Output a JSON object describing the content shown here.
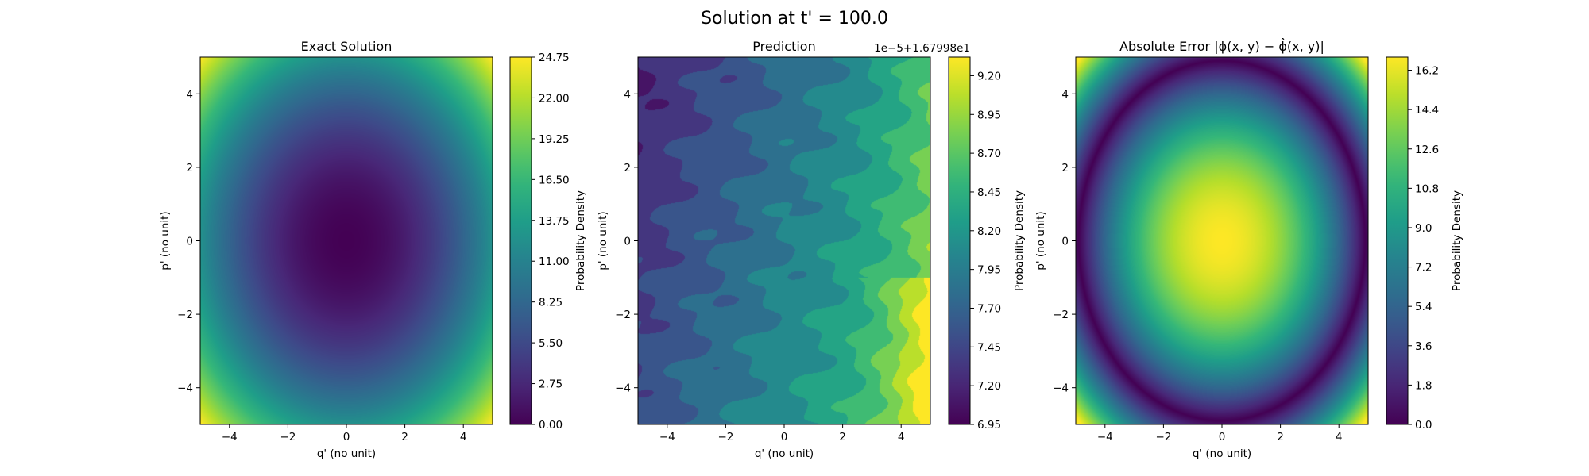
{
  "figure": {
    "title": "Solution at t' = 100.0"
  },
  "chart_data": [
    {
      "type": "heatmap",
      "title": "Exact Solution",
      "xlabel": "q' (no unit)",
      "ylabel": "p' (no unit)",
      "xlim": [
        -5,
        5
      ],
      "ylim": [
        -5,
        5
      ],
      "x_ticks": [
        -4,
        -2,
        0,
        2,
        4
      ],
      "y_ticks": [
        -4,
        -2,
        0,
        2,
        4
      ],
      "field": "radial-bowl",
      "colormap": "viridis",
      "colorbar": {
        "label": "Probability Density",
        "range": [
          0.0,
          24.75
        ],
        "ticks": [
          0.0,
          2.75,
          5.5,
          8.25,
          11.0,
          13.75,
          16.5,
          19.25,
          22.0,
          24.75
        ],
        "tick_labels": [
          "0.00",
          "2.75",
          "5.50",
          "8.25",
          "11.00",
          "13.75",
          "16.50",
          "19.25",
          "22.00",
          "24.75"
        ]
      }
    },
    {
      "type": "heatmap",
      "title": "Prediction",
      "xlabel": "q' (no unit)",
      "ylabel": "p' (no unit)",
      "xlim": [
        -5,
        5
      ],
      "ylim": [
        -5,
        5
      ],
      "x_ticks": [
        -4,
        -2,
        0,
        2,
        4
      ],
      "y_ticks": [
        -4,
        -2,
        0,
        2,
        4
      ],
      "field": "diagonal-gradient",
      "colormap": "viridis",
      "colorbar": {
        "label": "Probability Density",
        "offset_text": "1e−5+1.67998e1",
        "range": [
          6.95,
          9.32
        ],
        "ticks": [
          6.95,
          7.2,
          7.45,
          7.7,
          7.95,
          8.2,
          8.45,
          8.7,
          8.95,
          9.2
        ],
        "tick_labels": [
          "6.95",
          "7.20",
          "7.45",
          "7.70",
          "7.95",
          "8.20",
          "8.45",
          "8.70",
          "8.95",
          "9.20"
        ]
      }
    },
    {
      "type": "heatmap",
      "title": "Absolute Error |ϕ(x, y) − ϕ̂(x, y)|",
      "xlabel": "q' (no unit)",
      "ylabel": "p' (no unit)",
      "xlim": [
        -5,
        5
      ],
      "ylim": [
        -5,
        5
      ],
      "x_ticks": [
        -4,
        -2,
        0,
        2,
        4
      ],
      "y_ticks": [
        -4,
        -2,
        0,
        2,
        4
      ],
      "field": "radial-abs-error",
      "colormap": "viridis",
      "colorbar": {
        "label": "Probability Density",
        "range": [
          0.0,
          16.8
        ],
        "ticks": [
          0.0,
          1.8,
          3.6,
          5.4,
          7.2,
          9.0,
          10.8,
          12.6,
          14.4,
          16.2
        ],
        "tick_labels": [
          "0.0",
          "1.8",
          "3.6",
          "5.4",
          "7.2",
          "9.0",
          "10.8",
          "12.6",
          "14.4",
          "16.2"
        ]
      }
    }
  ]
}
